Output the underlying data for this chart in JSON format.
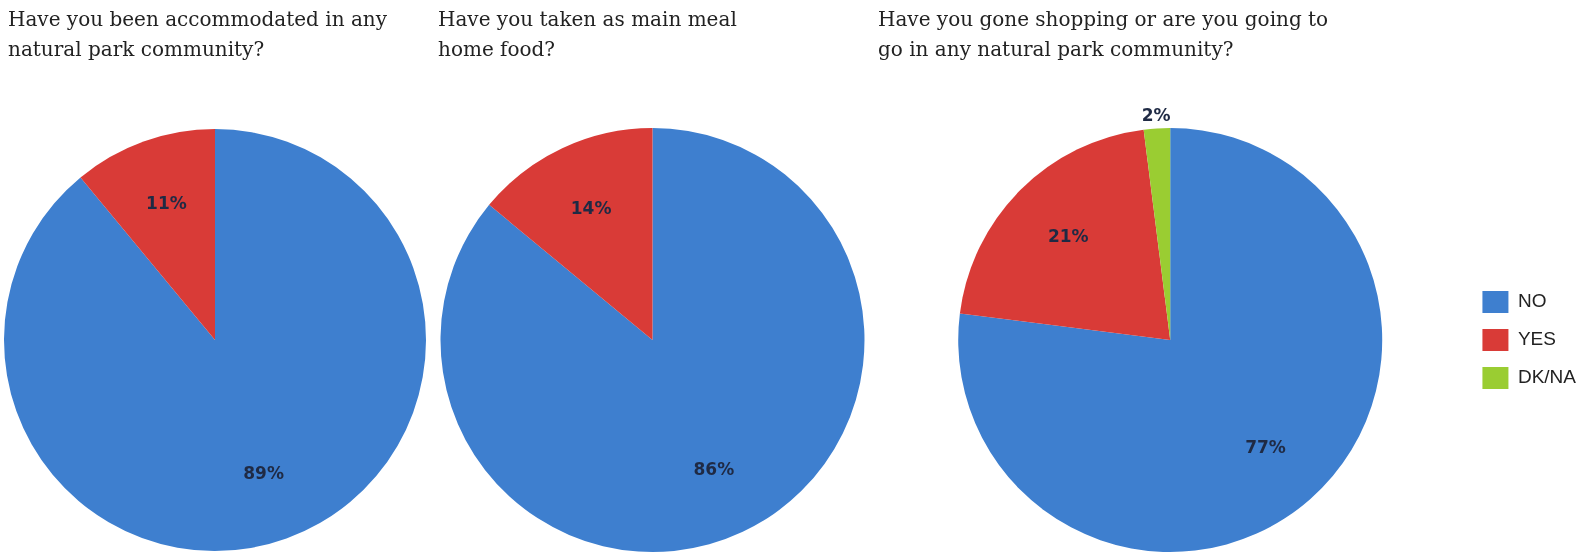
{
  "chart_data": [
    {
      "type": "pie",
      "title": "Have you been accommodated in any natural park community?",
      "categories": [
        null,
        null
      ],
      "values": [
        89,
        11
      ],
      "colors": [
        "#3e7fcf",
        "#d93b37"
      ],
      "value_labels": [
        "89%",
        "11%"
      ],
      "legend": false
    },
    {
      "type": "pie",
      "title": "Have you taken as main meal home food?",
      "categories": [
        null,
        null
      ],
      "values": [
        86,
        14
      ],
      "colors": [
        "#3e7fcf",
        "#d93b37"
      ],
      "value_labels": [
        "86%",
        "14%"
      ],
      "legend": false
    },
    {
      "type": "pie",
      "title": "Have you gone shopping or are you going to go in any natural park community?",
      "categories": [
        "NO",
        "YES",
        "DK/NA"
      ],
      "values": [
        77,
        21,
        2
      ],
      "colors": [
        "#3e7fcf",
        "#d93b37",
        "#9acd32"
      ],
      "value_labels": [
        "77%",
        "21%",
        "2%"
      ],
      "legend": "right"
    }
  ]
}
